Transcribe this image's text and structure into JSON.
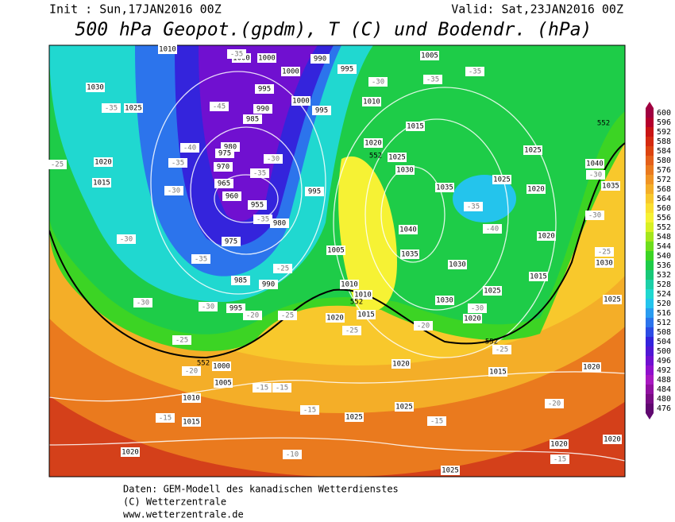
{
  "header": {
    "init": "Init : Sun,17JAN2016 00Z",
    "valid": "Valid: Sat,23JAN2016 00Z",
    "title": "500 hPa Geopot.(gpdm), T (C) und Bodendr. (hPa)"
  },
  "colorbar": {
    "ticks": [
      600,
      596,
      592,
      588,
      584,
      580,
      576,
      572,
      568,
      564,
      560,
      556,
      552,
      548,
      544,
      540,
      536,
      532,
      528,
      524,
      520,
      516,
      512,
      508,
      504,
      500,
      496,
      492,
      488,
      484,
      480,
      476
    ],
    "colors": [
      "#a00040",
      "#b4002c",
      "#c81414",
      "#d42a10",
      "#dc4410",
      "#e4601a",
      "#ea7a1e",
      "#f09424",
      "#f4ae28",
      "#f8c82c",
      "#fadf30",
      "#f6f234",
      "#d8f024",
      "#a4e61c",
      "#6ede1c",
      "#3cd424",
      "#1ecc48",
      "#18c878",
      "#1cd0a8",
      "#20d8d0",
      "#24c4ec",
      "#2a9cf0",
      "#2c74ec",
      "#2c4ce4",
      "#3424dc",
      "#5018d4",
      "#7010d0",
      "#9010cc",
      "#a818c0",
      "#9010a0",
      "#780c84",
      "#600870"
    ]
  },
  "labels": {
    "pressure": [
      "1010",
      "1000",
      "1000",
      "990",
      "995",
      "1005",
      "1030",
      "1025",
      "995",
      "1000",
      "990",
      "1000",
      "995",
      "1010",
      "985",
      "1015",
      "980",
      "1020",
      "975",
      "970",
      "1025",
      "1025",
      "1020",
      "1030",
      "965",
      "1015",
      "1040",
      "995",
      "1035",
      "1025",
      "1020",
      "1035",
      "960",
      "955",
      "980",
      "1040",
      "975",
      "1020",
      "1005",
      "1035",
      "1030",
      "1030",
      "985",
      "1015",
      "990",
      "1010",
      "1010",
      "1025",
      "1030",
      "1025",
      "995",
      "1015",
      "1020",
      "1020",
      "1000",
      "1005",
      "1020",
      "1010",
      "1015",
      "1020",
      "1025",
      "1025",
      "1015",
      "1020",
      "1020",
      "1020",
      "1025"
    ],
    "temperature": [
      "-35",
      "-30",
      "-35",
      "-35",
      "-35",
      "-45",
      "-40",
      "-35",
      "-25",
      "-30",
      "-35",
      "-30",
      "-30",
      "-35",
      "-35",
      "-40",
      "-30",
      "-30",
      "-25",
      "-35",
      "-25",
      "-30",
      "-30",
      "-20",
      "-25",
      "-25",
      "-20",
      "-30",
      "-25",
      "-25",
      "-20",
      "-15",
      "-15",
      "-15",
      "-15",
      "-15",
      "-20",
      "-10",
      "-15"
    ],
    "height": [
      "552",
      "552",
      "552",
      "552",
      "552"
    ]
  },
  "footer": {
    "source": "Daten: GEM-Modell des kanadischen Wetterdienstes",
    "copyright": "(C) Wetterzentrale",
    "url": "www.wetterzentrale.de"
  }
}
